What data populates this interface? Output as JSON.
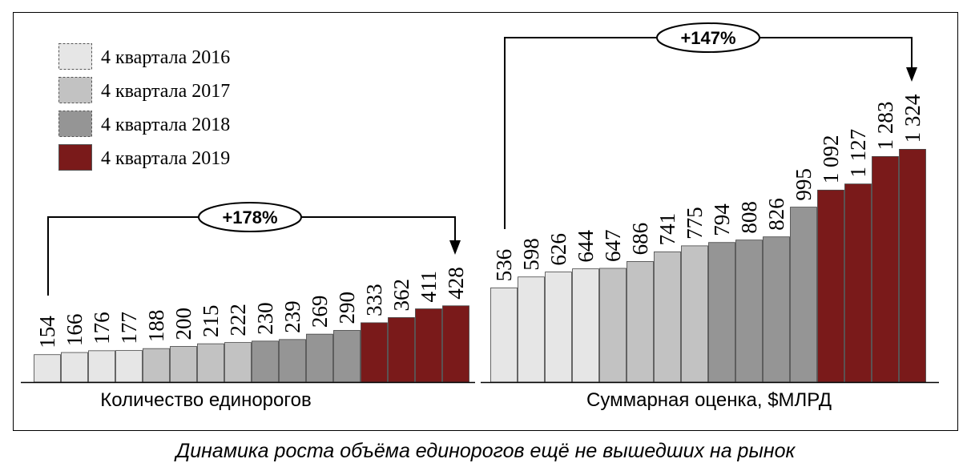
{
  "caption": "Динамика роста объёма единорогов ещё не вышедших на рынок",
  "colors": {
    "2016": "#e6e6e6",
    "2017": "#c2c2c2",
    "2018": "#959595",
    "2019": "#7a1a1a"
  },
  "chart_data": [
    {
      "type": "bar",
      "title": "Количество единорогов",
      "growth_label": "+178%",
      "series": [
        {
          "name": "4 квартала 2016",
          "period": "2016",
          "values": [
            154,
            166,
            176,
            177
          ],
          "labels": [
            "154",
            "166",
            "176",
            "177"
          ]
        },
        {
          "name": "4 квартала 2017",
          "period": "2017",
          "values": [
            188,
            200,
            215,
            222
          ],
          "labels": [
            "188",
            "200",
            "215",
            "222"
          ]
        },
        {
          "name": "4 квартала 2018",
          "period": "2018",
          "values": [
            230,
            239,
            269,
            290
          ],
          "labels": [
            "230",
            "239",
            "269",
            "290"
          ]
        },
        {
          "name": "4 квартала 2019",
          "period": "2019",
          "values": [
            333,
            362,
            411,
            428
          ],
          "labels": [
            "333",
            "362",
            "411",
            "428"
          ]
        }
      ]
    },
    {
      "type": "bar",
      "title": "Суммарная оценка, $МЛРД",
      "growth_label": "+147%",
      "series": [
        {
          "name": "4 квартала 2016",
          "period": "2016",
          "values": [
            536,
            598,
            626,
            644
          ],
          "labels": [
            "536",
            "598",
            "626",
            "644"
          ]
        },
        {
          "name": "4 квартала 2017",
          "period": "2017",
          "values": [
            647,
            686,
            741,
            775
          ],
          "labels": [
            "647",
            "686",
            "741",
            "775"
          ]
        },
        {
          "name": "4 квартала 2018",
          "period": "2018",
          "values": [
            794,
            808,
            826,
            995
          ],
          "labels": [
            "794",
            "808",
            "826",
            "995"
          ]
        },
        {
          "name": "4 квартала 2019",
          "period": "2019",
          "values": [
            1092,
            1127,
            1283,
            1324
          ],
          "labels": [
            "1 092",
            "1 127",
            "1 283",
            "1 324"
          ]
        }
      ]
    }
  ],
  "legend": [
    {
      "label": "4 квартала 2016",
      "period": "2016"
    },
    {
      "label": "4 квартала 2017",
      "period": "2017"
    },
    {
      "label": "4 квартала 2018",
      "period": "2018"
    },
    {
      "label": "4 квартала 2019",
      "period": "2019"
    }
  ]
}
